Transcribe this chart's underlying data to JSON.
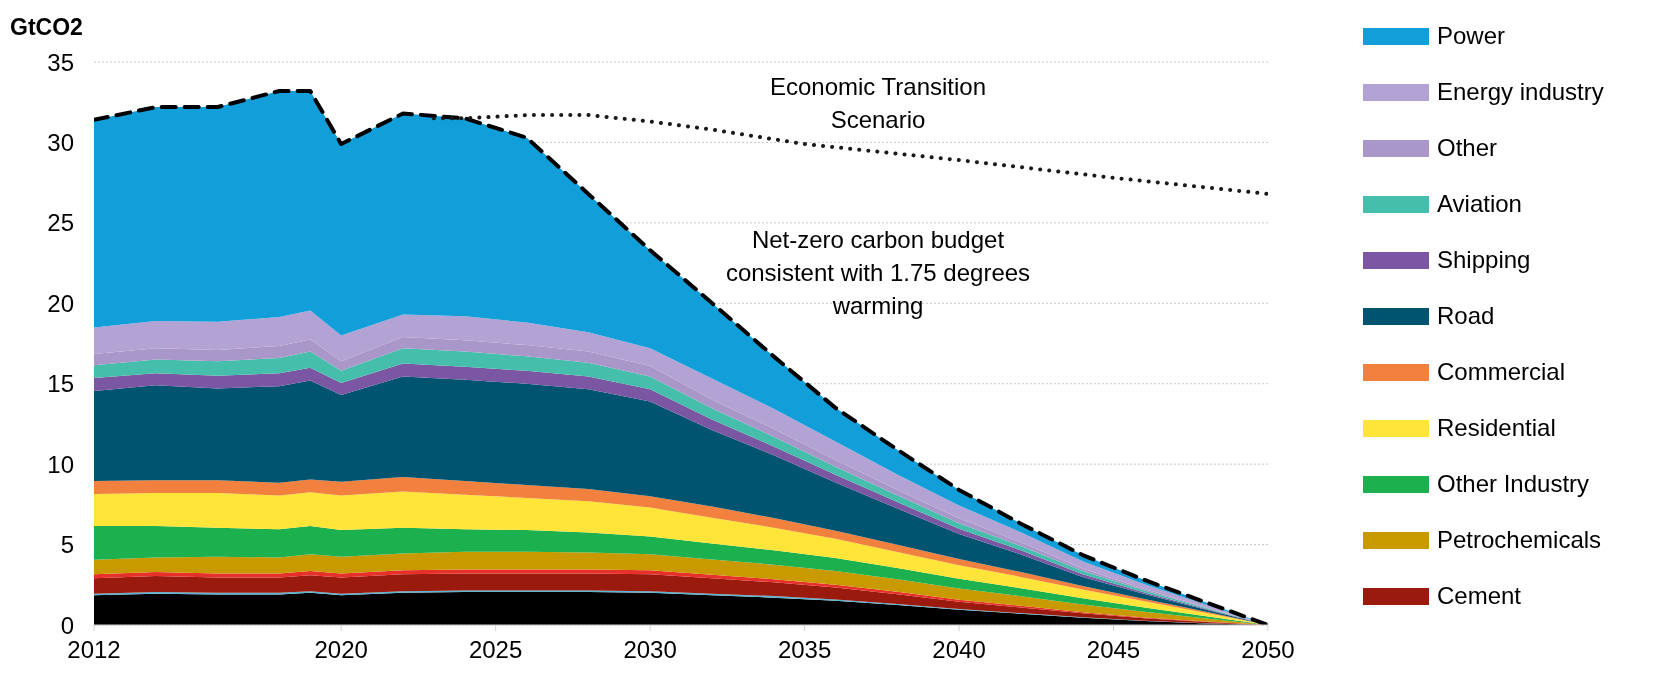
{
  "chart_data": {
    "type": "area",
    "stacked": true,
    "ylabel": "GtCO2",
    "xlim": [
      2012,
      2050
    ],
    "xticks": [
      2012,
      2020,
      2025,
      2030,
      2035,
      2040,
      2045,
      2050
    ],
    "ylim": [
      0,
      35
    ],
    "yticks": [
      0,
      5,
      10,
      15,
      20,
      25,
      30,
      35
    ],
    "grid": "y",
    "legend": "right",
    "marker": "none",
    "annotations": [
      "Economic Transition Scenario",
      "Net-zero carbon budget consistent with 1.75 degrees warming"
    ],
    "x": [
      2012,
      2014,
      2016,
      2018,
      2019,
      2020,
      2022,
      2024,
      2026,
      2028,
      2030,
      2032,
      2034,
      2036,
      2038,
      2040,
      2042,
      2044,
      2046,
      2048,
      2050
    ],
    "series": [
      {
        "color": "#000000",
        "values": [
          1.85,
          1.95,
          1.9,
          1.9,
          2.0,
          1.85,
          2.0,
          2.05,
          2.05,
          2.05,
          2.0,
          1.85,
          1.7,
          1.5,
          1.25,
          0.95,
          0.7,
          0.45,
          0.25,
          0.1,
          0
        ]
      },
      {
        "color": "#5bb5d5",
        "values": [
          0.1,
          0.1,
          0.1,
          0.1,
          0.1,
          0.1,
          0.1,
          0.1,
          0.1,
          0.1,
          0.1,
          0.1,
          0.1,
          0.08,
          0.06,
          0.05,
          0.04,
          0.03,
          0.02,
          0.01,
          0
        ]
      },
      {
        "name": "Cement",
        "color": "#9a1a0e",
        "values": [
          0.95,
          1.0,
          0.95,
          0.95,
          1.0,
          1.0,
          1.05,
          1.05,
          1.05,
          1.05,
          1.05,
          0.95,
          0.85,
          0.75,
          0.6,
          0.45,
          0.35,
          0.25,
          0.15,
          0.07,
          0
        ]
      },
      {
        "color": "#e8302a",
        "values": [
          0.25,
          0.25,
          0.25,
          0.25,
          0.25,
          0.25,
          0.25,
          0.25,
          0.25,
          0.25,
          0.25,
          0.22,
          0.2,
          0.18,
          0.15,
          0.12,
          0.1,
          0.07,
          0.05,
          0.03,
          0
        ]
      },
      {
        "name": "Petrochemicals",
        "color": "#c99a00",
        "values": [
          0.9,
          0.9,
          1.05,
          1.0,
          1.05,
          1.05,
          1.05,
          1.1,
          1.1,
          1.05,
          1.0,
          0.95,
          0.9,
          0.85,
          0.78,
          0.7,
          0.6,
          0.48,
          0.35,
          0.2,
          0
        ]
      },
      {
        "name": "Other Industry",
        "color": "#1db04e",
        "values": [
          2.1,
          1.95,
          1.8,
          1.75,
          1.75,
          1.65,
          1.6,
          1.4,
          1.35,
          1.25,
          1.1,
          1.0,
          0.9,
          0.8,
          0.7,
          0.6,
          0.5,
          0.38,
          0.27,
          0.14,
          0
        ]
      },
      {
        "name": "Residential",
        "color": "#ffe53a",
        "values": [
          2.0,
          2.05,
          2.15,
          2.1,
          2.1,
          2.15,
          2.25,
          2.15,
          2.0,
          1.95,
          1.8,
          1.6,
          1.4,
          1.2,
          1.0,
          0.85,
          0.7,
          0.55,
          0.38,
          0.2,
          0
        ]
      },
      {
        "name": "Commercial",
        "color": "#f2803e",
        "values": [
          0.8,
          0.8,
          0.8,
          0.8,
          0.8,
          0.85,
          0.9,
          0.85,
          0.8,
          0.75,
          0.7,
          0.7,
          0.6,
          0.5,
          0.45,
          0.38,
          0.3,
          0.22,
          0.15,
          0.08,
          0
        ]
      },
      {
        "name": "Road",
        "color": "#005470",
        "values": [
          5.6,
          5.9,
          5.7,
          6.0,
          6.15,
          5.4,
          6.25,
          6.3,
          6.3,
          6.2,
          5.9,
          4.75,
          3.9,
          3.0,
          2.25,
          1.55,
          1.1,
          0.55,
          0.3,
          0.12,
          0
        ]
      },
      {
        "name": "Shipping",
        "color": "#7a56a3",
        "values": [
          0.8,
          0.75,
          0.8,
          0.8,
          0.8,
          0.75,
          0.8,
          0.8,
          0.8,
          0.8,
          0.75,
          0.65,
          0.55,
          0.48,
          0.4,
          0.33,
          0.25,
          0.17,
          0.1,
          0.05,
          0
        ]
      },
      {
        "name": "Aviation",
        "color": "#45bfac",
        "values": [
          0.8,
          0.85,
          0.9,
          0.95,
          1.0,
          0.75,
          0.95,
          0.95,
          0.9,
          0.85,
          0.8,
          0.7,
          0.6,
          0.5,
          0.42,
          0.35,
          0.27,
          0.2,
          0.12,
          0.06,
          0
        ]
      },
      {
        "name": "Other",
        "color": "#a997c9",
        "values": [
          0.7,
          0.7,
          0.7,
          0.75,
          0.75,
          0.6,
          0.7,
          0.7,
          0.7,
          0.7,
          0.65,
          0.55,
          0.5,
          0.42,
          0.35,
          0.3,
          0.23,
          0.17,
          0.1,
          0.05,
          0
        ]
      },
      {
        "name": "Energy industry",
        "color": "#b3a2d4",
        "values": [
          1.65,
          1.7,
          1.75,
          1.8,
          1.8,
          1.6,
          1.4,
          1.5,
          1.4,
          1.2,
          1.1,
          1.3,
          1.25,
          1.15,
          0.95,
          0.8,
          0.62,
          0.45,
          0.3,
          0.15,
          0
        ]
      },
      {
        "name": "Power",
        "color": "#119ed9",
        "line_style": "dashed",
        "values": [
          12.9,
          13.3,
          13.35,
          14.05,
          13.65,
          11.9,
          12.5,
          12.3,
          11.5,
          8.6,
          6.1,
          4.7,
          3.25,
          2.09,
          1.54,
          0.97,
          0.54,
          0.38,
          0.26,
          0.14,
          0
        ]
      },
      {
        "type": "line",
        "line_style": "dotted",
        "color": "#1a1a1a",
        "x": [
          2023,
          2024,
          2026,
          2028,
          2030,
          2032,
          2035,
          2040,
          2045,
          2050
        ],
        "values": [
          31.5,
          31.5,
          31.7,
          31.7,
          31.3,
          30.8,
          29.9,
          28.9,
          27.8,
          26.8
        ]
      }
    ]
  }
}
